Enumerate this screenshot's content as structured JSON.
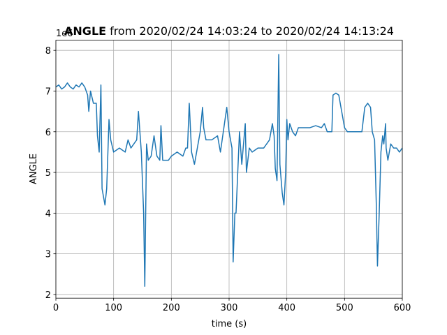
{
  "chart_data": {
    "type": "line",
    "title": {
      "name": "ANGLE",
      "range": "from 2020/02/24 14:03:24 to 2020/02/24 14:13:24"
    },
    "x_label": "time (s)",
    "y_label": "ANGLE",
    "y_offset": "1e6",
    "color": "#1f77b4",
    "grid": true,
    "xlim": [
      0,
      600
    ],
    "xticks": [
      0,
      100,
      200,
      300,
      400,
      500,
      600
    ],
    "ylim": [
      1.91,
      8.25
    ],
    "yticks": [
      2,
      3,
      4,
      5,
      6,
      7,
      8
    ],
    "x": [
      0,
      5,
      10,
      15,
      20,
      25,
      30,
      35,
      40,
      45,
      50,
      55,
      57,
      60,
      65,
      70,
      72,
      75,
      78,
      80,
      85,
      88,
      92,
      95,
      100,
      110,
      120,
      125,
      130,
      140,
      143,
      148,
      152,
      154,
      157,
      160,
      165,
      170,
      175,
      180,
      182,
      185,
      190,
      195,
      200,
      210,
      220,
      225,
      228,
      231,
      235,
      240,
      245,
      250,
      254,
      256,
      260,
      270,
      280,
      285,
      290,
      296,
      300,
      305,
      307,
      310,
      312,
      315,
      318,
      322,
      328,
      330,
      335,
      340,
      350,
      360,
      365,
      370,
      375,
      378,
      380,
      383,
      386,
      388,
      392,
      395,
      398,
      400,
      402,
      405,
      410,
      415,
      420,
      430,
      440,
      450,
      460,
      465,
      470,
      478,
      480,
      485,
      490,
      495,
      500,
      505,
      515,
      525,
      530,
      535,
      540,
      545,
      548,
      552,
      555,
      557,
      560,
      563,
      566,
      568,
      571,
      572,
      575,
      580,
      585,
      590,
      595,
      600
    ],
    "values": [
      7.1,
      7.15,
      7.05,
      7.1,
      7.2,
      7.1,
      7.05,
      7.15,
      7.1,
      7.2,
      7.1,
      6.9,
      6.5,
      7.0,
      6.7,
      6.7,
      5.9,
      5.5,
      7.15,
      4.6,
      4.2,
      4.6,
      6.3,
      5.8,
      5.5,
      5.6,
      5.5,
      5.8,
      5.6,
      5.8,
      6.5,
      5.5,
      4.0,
      2.2,
      5.7,
      5.3,
      5.4,
      5.9,
      5.4,
      5.3,
      6.15,
      5.3,
      5.3,
      5.3,
      5.4,
      5.5,
      5.4,
      5.6,
      5.6,
      6.7,
      5.5,
      5.2,
      5.6,
      6.0,
      6.6,
      6.1,
      5.8,
      5.8,
      5.9,
      5.5,
      6.0,
      6.6,
      6.0,
      5.6,
      2.8,
      4.0,
      4.0,
      5.0,
      6.0,
      5.2,
      6.2,
      5.0,
      5.6,
      5.5,
      5.6,
      5.6,
      5.7,
      5.8,
      6.2,
      5.9,
      5.1,
      4.8,
      7.9,
      5.2,
      4.5,
      4.2,
      5.0,
      6.3,
      5.8,
      6.2,
      6.0,
      5.9,
      6.1,
      6.1,
      6.1,
      6.15,
      6.1,
      6.2,
      6.0,
      6.0,
      6.9,
      6.95,
      6.9,
      6.5,
      6.1,
      6.0,
      6.0,
      6.0,
      6.0,
      6.6,
      6.7,
      6.6,
      6.0,
      5.8,
      4.2,
      2.7,
      4.0,
      5.5,
      5.9,
      5.7,
      6.2,
      5.6,
      5.3,
      5.7,
      5.6,
      5.6,
      5.5,
      5.6
    ]
  }
}
